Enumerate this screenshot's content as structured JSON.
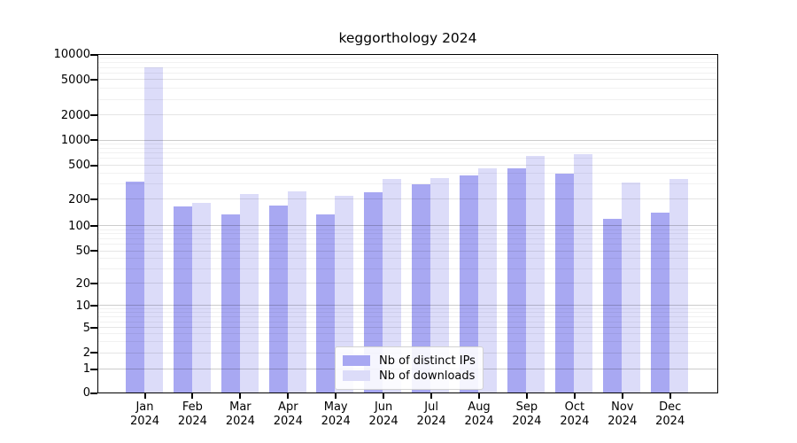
{
  "title": "keggorthology 2024",
  "chart_data": {
    "type": "bar",
    "title": "keggorthology 2024",
    "categories": [
      "Jan 2024",
      "Feb 2024",
      "Mar 2024",
      "Apr 2024",
      "May 2024",
      "Jun 2024",
      "Jul 2024",
      "Aug 2024",
      "Sep 2024",
      "Oct 2024",
      "Nov 2024",
      "Dec 2024"
    ],
    "series": [
      {
        "name": "Nb of distinct IPs",
        "color": "#a8a8f2",
        "values": [
          320,
          165,
          135,
          170,
          135,
          240,
          300,
          380,
          455,
          400,
          120,
          140
        ]
      },
      {
        "name": "Nb of downloads",
        "color": "#dcdcf9",
        "values": [
          6900,
          180,
          230,
          245,
          220,
          340,
          350,
          460,
          650,
          670,
          315,
          345
        ]
      }
    ],
    "xlabel": "",
    "ylabel": "",
    "yticks": [
      0,
      1,
      2,
      5,
      10,
      20,
      50,
      100,
      200,
      500,
      1000,
      2000,
      5000,
      10000
    ],
    "ylim": [
      0,
      10000
    ],
    "yscale": "log-with-zero-baseline",
    "grid": "horizontal major and minor log gridlines, drawn over bars",
    "legend_position": "bottom-center-inside"
  }
}
